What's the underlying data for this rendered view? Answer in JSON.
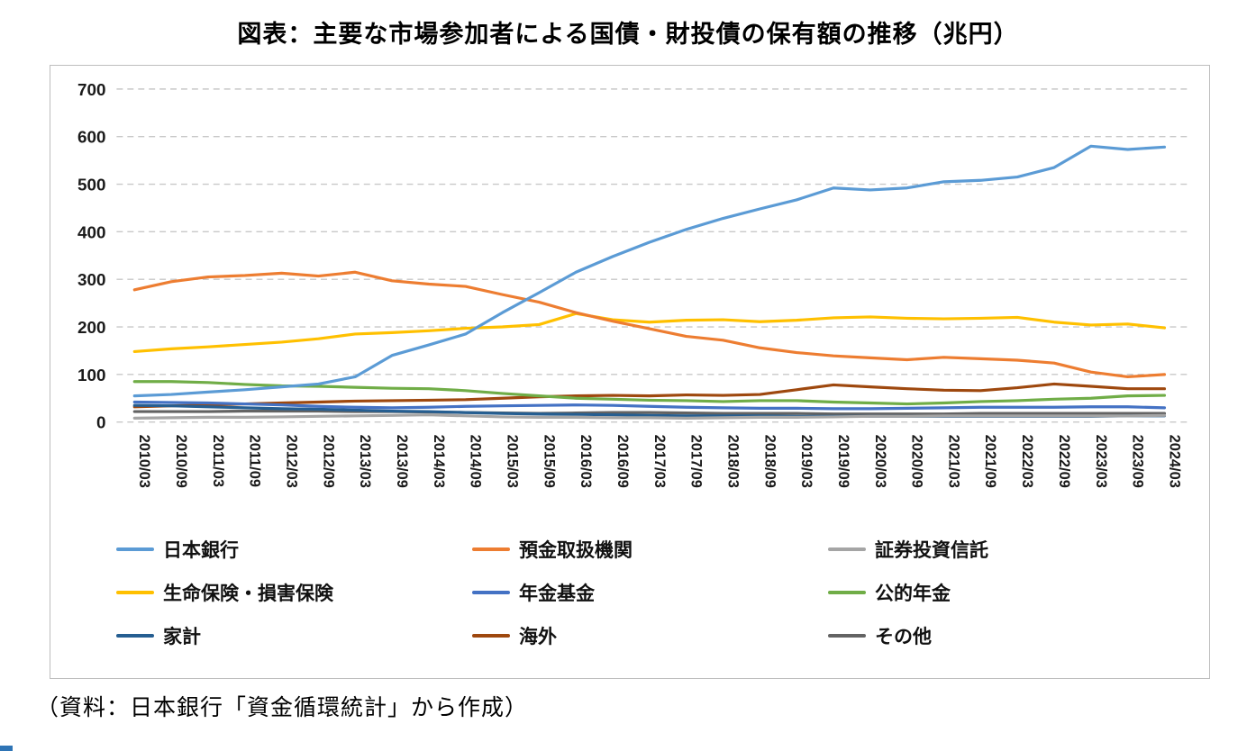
{
  "title": "図表：主要な市場参加者による国債・財投債の保有額の推移（兆円）",
  "source": "（資料：日本銀行「資金循環統計」から作成）",
  "chart_data": {
    "type": "line",
    "title": "図表：主要な市場参加者による国債・財投債の保有額の推移（兆円）",
    "ylabel": "",
    "xlabel": "",
    "ylim": [
      0,
      700
    ],
    "ytick": 100,
    "grid": "dashed-horizontal",
    "legend_position": "bottom",
    "categories": [
      "2010/03",
      "2010/09",
      "2011/03",
      "2011/09",
      "2012/03",
      "2012/09",
      "2013/03",
      "2013/09",
      "2014/03",
      "2014/09",
      "2015/03",
      "2015/09",
      "2016/03",
      "2016/09",
      "2017/03",
      "2017/09",
      "2018/03",
      "2018/09",
      "2019/03",
      "2019/09",
      "2020/03",
      "2020/09",
      "2021/03",
      "2021/09",
      "2022/03",
      "2022/09",
      "2023/03",
      "2023/09",
      "2024/03"
    ],
    "series": [
      {
        "name": "日本銀行",
        "color": "#5B9BD5",
        "values": [
          55,
          58,
          63,
          68,
          74,
          80,
          95,
          140,
          162,
          185,
          230,
          272,
          315,
          348,
          378,
          405,
          428,
          448,
          467,
          492,
          488,
          492,
          505,
          508,
          515,
          535,
          580,
          573,
          578
        ]
      },
      {
        "name": "預金取扱機関",
        "color": "#ED7D31",
        "values": [
          278,
          295,
          305,
          308,
          313,
          307,
          315,
          297,
          290,
          285,
          268,
          252,
          230,
          212,
          196,
          180,
          172,
          156,
          146,
          139,
          135,
          131,
          136,
          133,
          130,
          124,
          105,
          95,
          100
        ]
      },
      {
        "name": "証券投資信託",
        "color": "#A5A5A5",
        "values": [
          8,
          9,
          10,
          10,
          11,
          12,
          13,
          14,
          15,
          13,
          11,
          10,
          10,
          9,
          9,
          8,
          9,
          10,
          10,
          11,
          12,
          12,
          13,
          13,
          13,
          13,
          13,
          13,
          14
        ]
      },
      {
        "name": "生命保険・損害保険",
        "color": "#FFC000",
        "values": [
          148,
          154,
          158,
          163,
          168,
          175,
          185,
          188,
          192,
          197,
          200,
          205,
          228,
          215,
          210,
          214,
          215,
          211,
          214,
          219,
          221,
          218,
          217,
          218,
          220,
          210,
          204,
          206,
          198
        ]
      },
      {
        "name": "年金基金",
        "color": "#4472C4",
        "values": [
          42,
          41,
          40,
          38,
          36,
          33,
          31,
          30,
          31,
          33,
          34,
          35,
          36,
          35,
          33,
          31,
          30,
          29,
          29,
          28,
          28,
          29,
          30,
          31,
          31,
          31,
          32,
          32,
          30
        ]
      },
      {
        "name": "公的年金",
        "color": "#70AD47",
        "values": [
          85,
          85,
          83,
          79,
          76,
          75,
          73,
          71,
          70,
          66,
          60,
          55,
          50,
          48,
          46,
          45,
          43,
          45,
          45,
          42,
          40,
          38,
          40,
          43,
          45,
          48,
          50,
          55,
          56
        ]
      },
      {
        "name": "家計",
        "color": "#255E91",
        "values": [
          35,
          34,
          32,
          30,
          28,
          27,
          25,
          23,
          22,
          20,
          18,
          17,
          16,
          15,
          14,
          13,
          13,
          13,
          12,
          12,
          12,
          12,
          12,
          12,
          12,
          12,
          12,
          13,
          13
        ]
      },
      {
        "name": "海外",
        "color": "#9E480E",
        "values": [
          32,
          34,
          36,
          38,
          40,
          42,
          44,
          45,
          46,
          47,
          50,
          53,
          55,
          56,
          55,
          57,
          56,
          58,
          68,
          78,
          74,
          70,
          67,
          66,
          72,
          80,
          75,
          70,
          70
        ]
      },
      {
        "name": "その他",
        "color": "#636363",
        "values": [
          22,
          22,
          22,
          23,
          23,
          23,
          22,
          22,
          21,
          20,
          19,
          18,
          19,
          20,
          20,
          19,
          18,
          18,
          18,
          17,
          17,
          17,
          17,
          18,
          18,
          18,
          18,
          18,
          18
        ]
      }
    ]
  }
}
